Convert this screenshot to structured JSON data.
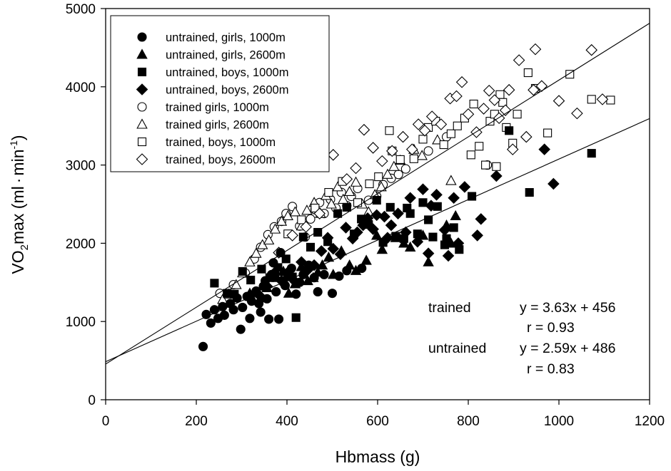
{
  "chart_data": {
    "type": "scatter",
    "title": "",
    "xlabel": "Hbmass (g)",
    "ylabel": {
      "prefix": "VO",
      "sub": "2",
      "main": "max (ml",
      "dot": "·",
      "unit": "min",
      "sup": "-1",
      "close": ")"
    },
    "xlim": [
      0,
      1200
    ],
    "ylim": [
      0,
      5000
    ],
    "xticks": [
      "0",
      "200",
      "400",
      "600",
      "800",
      "1000",
      "1200"
    ],
    "yticks": [
      "0",
      "1000",
      "2000",
      "3000",
      "4000",
      "5000"
    ],
    "grid": false,
    "legend_position": "top-left",
    "series": [
      {
        "name": "untrained, girls, 1000m",
        "marker": "circle",
        "filled": true,
        "points": [
          [
            215,
            680
          ],
          [
            222,
            1090
          ],
          [
            232,
            980
          ],
          [
            240,
            1150
          ],
          [
            248,
            1040
          ],
          [
            258,
            1190
          ],
          [
            262,
            1080
          ],
          [
            275,
            1230
          ],
          [
            282,
            1150
          ],
          [
            290,
            1300
          ],
          [
            298,
            900
          ],
          [
            302,
            1180
          ],
          [
            312,
            1320
          ],
          [
            318,
            1040
          ],
          [
            322,
            1260
          ],
          [
            332,
            1390
          ],
          [
            338,
            1230
          ],
          [
            342,
            1120
          ],
          [
            348,
            1450
          ],
          [
            352,
            1520
          ],
          [
            356,
            1290
          ],
          [
            360,
            1030
          ],
          [
            366,
            1600
          ],
          [
            370,
            1750
          ],
          [
            376,
            1380
          ],
          [
            382,
            1030
          ],
          [
            386,
            1880
          ],
          [
            392,
            1500
          ],
          [
            396,
            1460
          ],
          [
            402,
            1580
          ],
          [
            410,
            1680
          ],
          [
            420,
            1350
          ],
          [
            428,
            1500
          ],
          [
            436,
            1600
          ],
          [
            448,
            1720
          ],
          [
            460,
            1560
          ],
          [
            468,
            1380
          ],
          [
            482,
            1600
          ],
          [
            500,
            1360
          ],
          [
            515,
            1580
          ],
          [
            532,
            1650
          ],
          [
            565,
            1680
          ]
        ]
      },
      {
        "name": "untrained, girls, 2600m",
        "marker": "triangle",
        "filled": true,
        "points": [
          [
            318,
            1360
          ],
          [
            342,
            1300
          ],
          [
            356,
            1430
          ],
          [
            378,
            1560
          ],
          [
            392,
            1640
          ],
          [
            404,
            1360
          ],
          [
            418,
            1480
          ],
          [
            432,
            1700
          ],
          [
            446,
            1520
          ],
          [
            458,
            1560
          ],
          [
            468,
            1630
          ],
          [
            478,
            1720
          ],
          [
            492,
            1820
          ],
          [
            502,
            1600
          ],
          [
            520,
            1900
          ],
          [
            538,
            1720
          ],
          [
            552,
            1650
          ],
          [
            575,
            1780
          ],
          [
            598,
            2100
          ],
          [
            610,
            1920
          ],
          [
            640,
            2070
          ],
          [
            658,
            2000
          ],
          [
            672,
            1950
          ],
          [
            700,
            2100
          ],
          [
            712,
            1760
          ],
          [
            752,
            2230
          ],
          [
            762,
            2000
          ],
          [
            772,
            2350
          ]
        ]
      },
      {
        "name": "untrained, boys, 1000m",
        "marker": "square",
        "filled": true,
        "points": [
          [
            240,
            1490
          ],
          [
            268,
            1360
          ],
          [
            284,
            1350
          ],
          [
            302,
            1640
          ],
          [
            320,
            1530
          ],
          [
            344,
            1670
          ],
          [
            362,
            1560
          ],
          [
            380,
            1690
          ],
          [
            398,
            1800
          ],
          [
            412,
            1570
          ],
          [
            420,
            1050
          ],
          [
            436,
            2080
          ],
          [
            452,
            1950
          ],
          [
            468,
            2140
          ],
          [
            490,
            2020
          ],
          [
            512,
            2380
          ],
          [
            532,
            2460
          ],
          [
            548,
            2120
          ],
          [
            564,
            2310
          ],
          [
            580,
            2240
          ],
          [
            598,
            2550
          ],
          [
            612,
            2010
          ],
          [
            628,
            2460
          ],
          [
            640,
            2090
          ],
          [
            658,
            2060
          ],
          [
            665,
            2450
          ],
          [
            672,
            2380
          ],
          [
            688,
            2120
          ],
          [
            700,
            2520
          ],
          [
            712,
            2300
          ],
          [
            722,
            2080
          ],
          [
            732,
            2470
          ],
          [
            748,
            1980
          ],
          [
            752,
            2060
          ],
          [
            768,
            2200
          ],
          [
            780,
            1920
          ],
          [
            808,
            2600
          ],
          [
            890,
            3440
          ],
          [
            935,
            2650
          ],
          [
            1072,
            3150
          ]
        ]
      },
      {
        "name": "untrained, boys, 2600m",
        "marker": "diamond",
        "filled": true,
        "points": [
          [
            338,
            1340
          ],
          [
            356,
            1450
          ],
          [
            372,
            1620
          ],
          [
            388,
            1520
          ],
          [
            404,
            1640
          ],
          [
            418,
            1510
          ],
          [
            432,
            1760
          ],
          [
            446,
            1660
          ],
          [
            460,
            1720
          ],
          [
            476,
            1900
          ],
          [
            490,
            2070
          ],
          [
            502,
            1930
          ],
          [
            518,
            1860
          ],
          [
            530,
            2200
          ],
          [
            545,
            2060
          ],
          [
            555,
            2140
          ],
          [
            568,
            2230
          ],
          [
            578,
            2320
          ],
          [
            590,
            2180
          ],
          [
            598,
            2360
          ],
          [
            615,
            2340
          ],
          [
            622,
            2070
          ],
          [
            630,
            2230
          ],
          [
            645,
            2380
          ],
          [
            662,
            2140
          ],
          [
            672,
            2580
          ],
          [
            688,
            2020
          ],
          [
            700,
            2690
          ],
          [
            712,
            1870
          ],
          [
            718,
            2480
          ],
          [
            730,
            2620
          ],
          [
            748,
            2170
          ],
          [
            756,
            1840
          ],
          [
            768,
            2580
          ],
          [
            778,
            2000
          ],
          [
            792,
            2720
          ],
          [
            820,
            2100
          ],
          [
            828,
            2310
          ],
          [
            862,
            2860
          ],
          [
            968,
            3200
          ],
          [
            988,
            2760
          ]
        ]
      },
      {
        "name": "trained girls, 1000m",
        "marker": "circle",
        "filled": false,
        "points": [
          [
            252,
            1360
          ],
          [
            282,
            1470
          ],
          [
            308,
            1620
          ],
          [
            328,
            1800
          ],
          [
            342,
            1950
          ],
          [
            358,
            2110
          ],
          [
            372,
            2210
          ],
          [
            388,
            2280
          ],
          [
            398,
            2380
          ],
          [
            412,
            2470
          ],
          [
            428,
            2220
          ],
          [
            440,
            2080
          ],
          [
            452,
            2310
          ],
          [
            462,
            2430
          ],
          [
            472,
            2520
          ],
          [
            482,
            2380
          ],
          [
            496,
            2560
          ],
          [
            508,
            2450
          ],
          [
            520,
            2650
          ],
          [
            532,
            2480
          ],
          [
            542,
            2600
          ],
          [
            556,
            2700
          ],
          [
            568,
            2300
          ],
          [
            580,
            2550
          ],
          [
            598,
            2600
          ],
          [
            612,
            2750
          ],
          [
            630,
            2830
          ],
          [
            646,
            2880
          ],
          [
            662,
            2950
          ],
          [
            712,
            3180
          ],
          [
            752,
            3360
          ],
          [
            842,
            3000
          ]
        ]
      },
      {
        "name": "trained girls, 2600m",
        "marker": "triangle",
        "filled": false,
        "points": [
          [
            258,
            1280
          ],
          [
            272,
            1350
          ],
          [
            288,
            1470
          ],
          [
            302,
            1620
          ],
          [
            318,
            1760
          ],
          [
            332,
            1870
          ],
          [
            346,
            1980
          ],
          [
            360,
            2040
          ],
          [
            374,
            2180
          ],
          [
            388,
            2280
          ],
          [
            402,
            2350
          ],
          [
            418,
            2400
          ],
          [
            432,
            2220
          ],
          [
            444,
            2420
          ],
          [
            460,
            2520
          ],
          [
            474,
            2380
          ],
          [
            486,
            2610
          ],
          [
            498,
            2500
          ],
          [
            512,
            2720
          ],
          [
            524,
            2560
          ],
          [
            538,
            2660
          ],
          [
            552,
            2780
          ],
          [
            566,
            2500
          ],
          [
            580,
            2400
          ],
          [
            594,
            2620
          ],
          [
            608,
            2720
          ],
          [
            622,
            2880
          ],
          [
            636,
            2980
          ],
          [
            650,
            3060
          ],
          [
            680,
            3200
          ],
          [
            698,
            3120
          ],
          [
            732,
            3320
          ],
          [
            762,
            2800
          ]
        ]
      },
      {
        "name": "trained, boys, 1000m",
        "marker": "square",
        "filled": false,
        "points": [
          [
            402,
            2120
          ],
          [
            432,
            2300
          ],
          [
            462,
            2450
          ],
          [
            492,
            2650
          ],
          [
            522,
            2790
          ],
          [
            556,
            2520
          ],
          [
            582,
            2760
          ],
          [
            602,
            2850
          ],
          [
            626,
            3440
          ],
          [
            632,
            3180
          ],
          [
            650,
            3070
          ],
          [
            680,
            3080
          ],
          [
            700,
            3330
          ],
          [
            712,
            3480
          ],
          [
            728,
            3560
          ],
          [
            746,
            3260
          ],
          [
            762,
            3400
          ],
          [
            776,
            3500
          ],
          [
            792,
            3600
          ],
          [
            806,
            3130
          ],
          [
            812,
            3780
          ],
          [
            824,
            3240
          ],
          [
            838,
            3000
          ],
          [
            848,
            3560
          ],
          [
            858,
            3650
          ],
          [
            870,
            3900
          ],
          [
            876,
            3800
          ],
          [
            884,
            3480
          ],
          [
            898,
            3280
          ],
          [
            908,
            3650
          ],
          [
            932,
            4180
          ],
          [
            948,
            3980
          ],
          [
            975,
            3410
          ],
          [
            1024,
            4160
          ],
          [
            1072,
            3840
          ],
          [
            1114,
            3830
          ],
          [
            862,
            2980
          ]
        ]
      },
      {
        "name": "trained, boys, 2600m",
        "marker": "diamond",
        "filled": false,
        "points": [
          [
            382,
            1880
          ],
          [
            412,
            2100
          ],
          [
            442,
            2210
          ],
          [
            472,
            2380
          ],
          [
            502,
            3130
          ],
          [
            532,
            2820
          ],
          [
            552,
            2960
          ],
          [
            570,
            3450
          ],
          [
            590,
            3220
          ],
          [
            610,
            3050
          ],
          [
            632,
            3180
          ],
          [
            656,
            3360
          ],
          [
            676,
            3200
          ],
          [
            690,
            3520
          ],
          [
            704,
            3440
          ],
          [
            720,
            3620
          ],
          [
            740,
            3520
          ],
          [
            760,
            3850
          ],
          [
            774,
            3880
          ],
          [
            786,
            4060
          ],
          [
            800,
            3650
          ],
          [
            818,
            3420
          ],
          [
            834,
            3720
          ],
          [
            846,
            3950
          ],
          [
            858,
            3830
          ],
          [
            868,
            3600
          ],
          [
            882,
            3700
          ],
          [
            898,
            3200
          ],
          [
            912,
            4340
          ],
          [
            928,
            3360
          ],
          [
            948,
            4480
          ],
          [
            962,
            4010
          ],
          [
            1000,
            3820
          ],
          [
            1040,
            3660
          ],
          [
            1072,
            4470
          ],
          [
            1096,
            3840
          ],
          [
            890,
            3960
          ],
          [
            944,
            3960
          ]
        ]
      }
    ],
    "regression_lines": [
      {
        "name": "trained",
        "slope": 3.63,
        "intercept": 456
      },
      {
        "name": "untrained",
        "slope": 2.59,
        "intercept": 486
      }
    ],
    "annotations": [
      {
        "group": "trained",
        "equation": "y = 3.63x + 456",
        "r": "r = 0.93"
      },
      {
        "group": "untrained",
        "equation": "y = 2.59x + 486",
        "r": "r = 0.83"
      }
    ]
  }
}
